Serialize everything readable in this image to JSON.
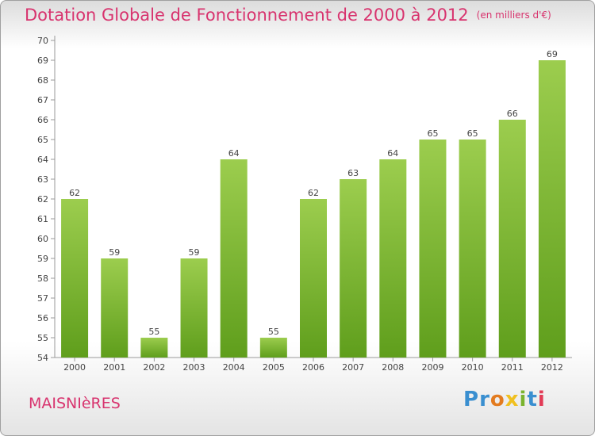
{
  "title": "Dotation Globale de Fonctionnement de 2000 à 2012",
  "unit": "(en milliers d'€)",
  "commune": "MAISNIèRES",
  "logo": {
    "letters": [
      "P",
      "r",
      "o",
      "x",
      "i",
      "t",
      "i"
    ],
    "colors": [
      "#3a8fd0",
      "#3a8fd0",
      "#e37b1f",
      "#f0c020",
      "#7ab32e",
      "#3a8fd0",
      "#e23b56"
    ]
  },
  "colors": {
    "bar_light": "#9ccd4e",
    "bar_dark": "#5f9e1c",
    "title": "#d8336e"
  },
  "chart_data": {
    "type": "bar",
    "categories": [
      "2000",
      "2001",
      "2002",
      "2003",
      "2004",
      "2005",
      "2006",
      "2007",
      "2008",
      "2009",
      "2010",
      "2011",
      "2012"
    ],
    "values": [
      62,
      59,
      55,
      59,
      64,
      55,
      62,
      63,
      64,
      65,
      65,
      66,
      69
    ],
    "ylim": [
      54,
      70
    ],
    "yticks": [
      54,
      55,
      56,
      57,
      58,
      59,
      60,
      61,
      62,
      63,
      64,
      65,
      66,
      67,
      68,
      69,
      70
    ],
    "xlabel": "",
    "ylabel": "",
    "grid": false
  }
}
